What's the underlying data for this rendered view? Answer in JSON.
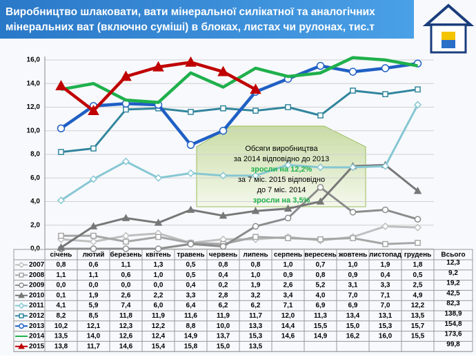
{
  "chart_data": {
    "type": "line",
    "title": "Виробництво шлаковати, вати  мінеральної силікатної та аналогічних мінеральних ват (включно суміші) в блоках, листах чи рулонах, тис.т",
    "categories": [
      "січень",
      "лютий",
      "березень",
      "квітень",
      "травень",
      "червень",
      "липень",
      "серпень",
      "вересень",
      "жовтень",
      "листопад",
      "грудень"
    ],
    "total_header": "Всього",
    "ylim": [
      0,
      16
    ],
    "yticks": [
      {
        "value": 0,
        "label": "0,0"
      },
      {
        "value": 2,
        "label": "2,0"
      },
      {
        "value": 4,
        "label": "4,0"
      },
      {
        "value": 6,
        "label": "6,0"
      },
      {
        "value": 8,
        "label": "8,0"
      },
      {
        "value": 10,
        "label": "10,0"
      },
      {
        "value": 12,
        "label": "12,0"
      },
      {
        "value": 14,
        "label": "14,0"
      },
      {
        "value": 16,
        "label": "16,0"
      }
    ],
    "grid": true,
    "annotation": [
      "Обсяги виробництва",
      "за 2014 відповідно до 2013",
      "зросли на 12,2%",
      "за 7 міс. 2015  відповідно",
      "до 7 міс. 2014",
      "зросли на 3,5%"
    ],
    "series": [
      {
        "name": "2007",
        "color": "#bfbfbf",
        "marker": "diamond",
        "values": [
          0.8,
          0.6,
          1.1,
          1.3,
          0.5,
          0.8,
          0.8,
          1.0,
          0.7,
          1.0,
          1.9,
          1.8
        ],
        "value_labels": [
          "0,8",
          "0,6",
          "1,1",
          "1,3",
          "0,5",
          "0,8",
          "0,8",
          "1,0",
          "0,7",
          "1,0",
          "1,9",
          "1,8"
        ],
        "total": 12.3,
        "total_label": "12,3"
      },
      {
        "name": "2008",
        "color": "#a6a6a6",
        "marker": "square",
        "values": [
          1.1,
          1.1,
          0.6,
          1.0,
          0.5,
          0.4,
          1.0,
          0.9,
          0.8,
          0.9,
          0.4,
          0.5
        ],
        "value_labels": [
          "1,1",
          "1,1",
          "0,6",
          "1,0",
          "0,5",
          "0,4",
          "1,0",
          "0,9",
          "0,8",
          "0,9",
          "0,4",
          "0,5"
        ],
        "total": 9.2,
        "total_label": "9,2"
      },
      {
        "name": "2009",
        "color": "#8c8c8c",
        "marker": "circle",
        "values": [
          0.0,
          0.0,
          0.0,
          0.0,
          0.4,
          0.2,
          1.9,
          2.6,
          5.2,
          3.1,
          3.3,
          2.5
        ],
        "value_labels": [
          "0,0",
          "0,0",
          "0,0",
          "0,0",
          "0,4",
          "0,2",
          "1,9",
          "2,6",
          "5,2",
          "3,1",
          "3,3",
          "2,5"
        ],
        "total": 19.2,
        "total_label": "19,2"
      },
      {
        "name": "2010",
        "color": "#777777",
        "marker": "triangle",
        "values": [
          0.1,
          1.9,
          2.6,
          2.2,
          3.3,
          2.8,
          3.2,
          3.4,
          4.0,
          7.0,
          7.1,
          4.9
        ],
        "value_labels": [
          "0,1",
          "1,9",
          "2,6",
          "2,2",
          "3,3",
          "2,8",
          "3,2",
          "3,4",
          "4,0",
          "7,0",
          "7,1",
          "4,9"
        ],
        "total": 42.5,
        "total_label": "42,5"
      },
      {
        "name": "2011",
        "color": "#86c7d3",
        "marker": "diamond",
        "values": [
          4.1,
          5.9,
          7.4,
          6.0,
          6.4,
          6.2,
          6.2,
          7.1,
          6.9,
          6.9,
          7.0,
          12.2
        ],
        "value_labels": [
          "4,1",
          "5,9",
          "7,4",
          "6,0",
          "6,4",
          "6,2",
          "6,2",
          "7,1",
          "6,9",
          "6,9",
          "7,0",
          "12,2"
        ],
        "total": 82.3,
        "total_label": "82,3"
      },
      {
        "name": "2012",
        "color": "#31859c",
        "marker": "square",
        "values": [
          8.2,
          8.5,
          11.8,
          11.9,
          11.6,
          11.9,
          11.7,
          12.0,
          11.3,
          13.4,
          13.1,
          13.5
        ],
        "value_labels": [
          "8,2",
          "8,5",
          "11,8",
          "11,9",
          "11,6",
          "11,9",
          "11,7",
          "12,0",
          "11,3",
          "13,4",
          "13,1",
          "13,5"
        ],
        "total": 138.9,
        "total_label": "138,9"
      },
      {
        "name": "2013",
        "color": "#1f5fc4",
        "marker": "circle",
        "values": [
          10.2,
          12.1,
          12.3,
          12.2,
          8.8,
          10.0,
          13.3,
          14.4,
          15.5,
          15.0,
          15.3,
          15.7
        ],
        "value_labels": [
          "10,2",
          "12,1",
          "12,3",
          "12,2",
          "8,8",
          "10,0",
          "13,3",
          "14,4",
          "15,5",
          "15,0",
          "15,3",
          "15,7"
        ],
        "total": 154.8,
        "total_label": "154,8"
      },
      {
        "name": "2014",
        "color": "#1fb04c",
        "marker": "none",
        "values": [
          13.5,
          14.0,
          12.6,
          12.4,
          14.9,
          13.7,
          15.3,
          14.6,
          14.9,
          16.2,
          16.0,
          15.5
        ],
        "value_labels": [
          "13,5",
          "14,0",
          "12,6",
          "12,4",
          "14,9",
          "13,7",
          "15,3",
          "14,6",
          "14,9",
          "16,2",
          "16,0",
          "15,5"
        ],
        "total": 173.6,
        "total_label": "173,6"
      },
      {
        "name": "2015",
        "color": "#c00000",
        "marker": "triangle",
        "values": [
          13.8,
          11.7,
          14.6,
          15.4,
          15.8,
          15.0,
          13.5,
          null,
          null,
          null,
          null,
          null
        ],
        "value_labels": [
          "13,8",
          "11,7",
          "14,6",
          "15,4",
          "15,8",
          "15,0",
          "13,5",
          null,
          null,
          null,
          null,
          null
        ],
        "total": 99.8,
        "total_label": "99,8"
      }
    ]
  }
}
